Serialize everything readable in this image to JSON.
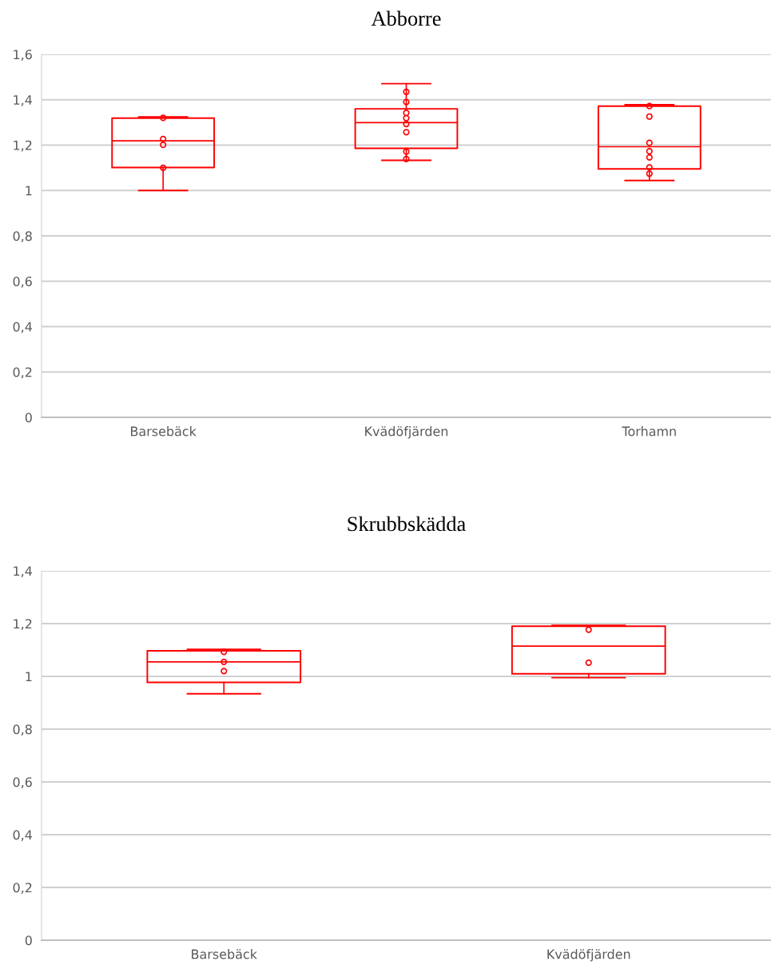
{
  "chart_data": [
    {
      "type": "box",
      "title": "Abborre",
      "categories": [
        "Barsebäck",
        "Kvädöfjärden",
        "Torhamn"
      ],
      "color": "#ff0000",
      "boxes": [
        {
          "low": 1.0,
          "q1": 1.101,
          "median": 1.219,
          "q3": 1.319,
          "high": 1.324
        },
        {
          "low": 1.133,
          "q1": 1.186,
          "median": 1.299,
          "q3": 1.36,
          "high": 1.471
        },
        {
          "low": 1.044,
          "q1": 1.095,
          "median": 1.193,
          "q3": 1.372,
          "high": 1.378
        }
      ],
      "series": [
        {
          "type": "scatter",
          "color": "#ff0000",
          "x": [
            "Barsebäck",
            "Barsebäck",
            "Barsebäck",
            "Barsebäck"
          ],
          "values": [
            1.32,
            1.227,
            1.201,
            1.1
          ]
        },
        {
          "type": "scatter",
          "color": "#ff0000",
          "x": [
            "Kvädöfjärden",
            "Kvädöfjärden",
            "Kvädöfjärden",
            "Kvädöfjärden",
            "Kvädöfjärden",
            "Kvädöfjärden",
            "Kvädöfjärden",
            "Kvädöfjärden"
          ],
          "values": [
            1.435,
            1.39,
            1.342,
            1.319,
            1.293,
            1.257,
            1.171,
            1.139
          ]
        },
        {
          "type": "scatter",
          "color": "#ff0000",
          "x": [
            "Torhamn",
            "Torhamn",
            "Torhamn",
            "Torhamn",
            "Torhamn",
            "Torhamn",
            "Torhamn"
          ],
          "values": [
            1.372,
            1.326,
            1.21,
            1.173,
            1.146,
            1.102,
            1.074
          ]
        }
      ],
      "marker": "circle",
      "ylim": [
        0,
        1.6
      ],
      "yticks": [
        0,
        {
          "value": 0.2,
          "label": "0,2"
        },
        {
          "value": 0.4,
          "label": "0,4"
        },
        {
          "value": 0.6,
          "label": "0,6"
        },
        {
          "value": 0.8,
          "label": "0,8"
        },
        1,
        {
          "value": 1.2,
          "label": "1,2"
        },
        {
          "value": 1.4,
          "label": "1,4"
        },
        {
          "value": 1.6,
          "label": "1,6"
        }
      ],
      "grid": "y"
    },
    {
      "type": "box",
      "title": "Skrubbskädda",
      "categories": [
        "Barsebäck",
        "Kvädöfjärden"
      ],
      "color": "#ff0000",
      "boxes": [
        {
          "low": 0.934,
          "q1": 0.977,
          "median": 1.055,
          "q3": 1.097,
          "high": 1.102
        },
        {
          "low": 0.995,
          "q1": 1.01,
          "median": 1.115,
          "q3": 1.19,
          "high": 1.193
        }
      ],
      "series": [
        {
          "type": "scatter",
          "color": "#ff0000",
          "x": [
            "Barsebäck",
            "Barsebäck",
            "Barsebäck"
          ],
          "values": [
            1.093,
            1.055,
            1.02
          ]
        },
        {
          "type": "scatter",
          "color": "#ff0000",
          "x": [
            "Kvädöfjärden",
            "Kvädöfjärden"
          ],
          "values": [
            1.177,
            1.052
          ]
        }
      ],
      "marker": "circle",
      "ylim": [
        0,
        1.4
      ],
      "yticks": [
        0,
        {
          "value": 0.2,
          "label": "0,2"
        },
        {
          "value": 0.4,
          "label": "0,4"
        },
        {
          "value": 0.6,
          "label": "0,6"
        },
        {
          "value": 0.8,
          "label": "0,8"
        },
        1,
        {
          "value": 1.2,
          "label": "1,2"
        },
        {
          "value": 1.4,
          "label": "1,4"
        }
      ],
      "grid": "y"
    }
  ]
}
